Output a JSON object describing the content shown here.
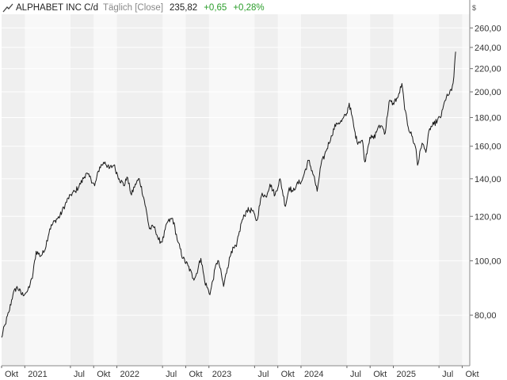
{
  "header": {
    "title": "ALPHABET INC C/d",
    "interval": "Täglich [Close]",
    "price": "235,82",
    "change_abs": "+0,65",
    "change_pct": "+0,28%"
  },
  "currency": "$",
  "colors": {
    "line": "#1a1a1a",
    "positive": "#2a9d2a",
    "band": "#efefef",
    "bg": "#f8f8f8",
    "grid": "#ffffff"
  },
  "chart_data": {
    "type": "line",
    "y_scale": "log",
    "ylim": [
      65,
      275
    ],
    "xlim": [
      "2020-10-01",
      "2025-10-31"
    ],
    "y_ticks": [
      {
        "value": 80,
        "label": "80,00"
      },
      {
        "value": 100,
        "label": "100,00"
      },
      {
        "value": 120,
        "label": "120,00"
      },
      {
        "value": 140,
        "label": "140,00"
      },
      {
        "value": 160,
        "label": "160,00"
      },
      {
        "value": 180,
        "label": "180,00"
      },
      {
        "value": 200,
        "label": "200,00"
      },
      {
        "value": 220,
        "label": "220,00"
      },
      {
        "value": 240,
        "label": "240,00"
      },
      {
        "value": 260,
        "label": "260,00"
      }
    ],
    "x_ticks": [
      {
        "date": "2020-10-01",
        "label": "Okt"
      },
      {
        "date": "2021-01-01",
        "label": "2021"
      },
      {
        "date": "2021-07-01",
        "label": "Jul"
      },
      {
        "date": "2021-10-01",
        "label": "Okt"
      },
      {
        "date": "2022-01-01",
        "label": "2022"
      },
      {
        "date": "2022-07-01",
        "label": "Jul"
      },
      {
        "date": "2022-10-01",
        "label": "Okt"
      },
      {
        "date": "2023-01-01",
        "label": "2023"
      },
      {
        "date": "2023-07-01",
        "label": "Jul"
      },
      {
        "date": "2023-10-01",
        "label": "Okt"
      },
      {
        "date": "2024-01-01",
        "label": "2024"
      },
      {
        "date": "2024-07-01",
        "label": "Jul"
      },
      {
        "date": "2024-10-01",
        "label": "Okt"
      },
      {
        "date": "2025-01-01",
        "label": "2025"
      },
      {
        "date": "2025-07-01",
        "label": "Jul"
      },
      {
        "date": "2025-10-01",
        "label": "Okt"
      }
    ],
    "series": [
      {
        "points": [
          [
            "2020-10-01",
            73
          ],
          [
            "2020-10-15",
            77
          ],
          [
            "2020-10-30",
            81
          ],
          [
            "2020-11-15",
            87
          ],
          [
            "2020-12-01",
            90
          ],
          [
            "2020-12-20",
            87
          ],
          [
            "2021-01-10",
            88
          ],
          [
            "2021-01-31",
            93
          ],
          [
            "2021-02-15",
            104
          ],
          [
            "2021-03-05",
            102
          ],
          [
            "2021-03-20",
            104
          ],
          [
            "2021-04-10",
            114
          ],
          [
            "2021-05-01",
            118
          ],
          [
            "2021-05-20",
            120
          ],
          [
            "2021-06-10",
            126
          ],
          [
            "2021-06-30",
            131
          ],
          [
            "2021-07-20",
            133
          ],
          [
            "2021-08-10",
            137
          ],
          [
            "2021-08-31",
            143
          ],
          [
            "2021-09-20",
            140
          ],
          [
            "2021-10-05",
            136
          ],
          [
            "2021-10-25",
            147
          ],
          [
            "2021-11-15",
            150
          ],
          [
            "2021-12-01",
            146
          ],
          [
            "2021-12-20",
            148
          ],
          [
            "2022-01-10",
            140
          ],
          [
            "2022-01-31",
            136
          ],
          [
            "2022-02-10",
            141
          ],
          [
            "2022-02-28",
            131
          ],
          [
            "2022-03-15",
            137
          ],
          [
            "2022-03-31",
            140
          ],
          [
            "2022-04-20",
            128
          ],
          [
            "2022-05-10",
            114
          ],
          [
            "2022-05-31",
            115
          ],
          [
            "2022-06-15",
            109
          ],
          [
            "2022-06-30",
            108
          ],
          [
            "2022-07-20",
            117
          ],
          [
            "2022-08-10",
            119
          ],
          [
            "2022-08-31",
            108
          ],
          [
            "2022-09-20",
            101
          ],
          [
            "2022-10-10",
            98
          ],
          [
            "2022-10-31",
            93
          ],
          [
            "2022-11-10",
            94
          ],
          [
            "2022-11-30",
            101
          ],
          [
            "2022-12-15",
            92
          ],
          [
            "2023-01-05",
            87
          ],
          [
            "2023-01-31",
            99
          ],
          [
            "2023-02-08",
            100
          ],
          [
            "2023-02-28",
            90
          ],
          [
            "2023-03-15",
            97
          ],
          [
            "2023-03-31",
            104
          ],
          [
            "2023-04-20",
            106
          ],
          [
            "2023-05-10",
            117
          ],
          [
            "2023-05-31",
            123
          ],
          [
            "2023-06-20",
            123
          ],
          [
            "2023-07-10",
            118
          ],
          [
            "2023-07-31",
            132
          ],
          [
            "2023-08-15",
            130
          ],
          [
            "2023-08-31",
            137
          ],
          [
            "2023-09-20",
            131
          ],
          [
            "2023-10-10",
            140
          ],
          [
            "2023-10-31",
            125
          ],
          [
            "2023-11-15",
            135
          ],
          [
            "2023-11-30",
            133
          ],
          [
            "2023-12-15",
            137
          ],
          [
            "2024-01-05",
            139
          ],
          [
            "2024-01-31",
            151
          ],
          [
            "2024-02-20",
            142
          ],
          [
            "2024-03-05",
            133
          ],
          [
            "2024-03-20",
            148
          ],
          [
            "2024-04-10",
            157
          ],
          [
            "2024-04-30",
            167
          ],
          [
            "2024-05-20",
            176
          ],
          [
            "2024-06-10",
            177
          ],
          [
            "2024-06-30",
            183
          ],
          [
            "2024-07-10",
            191
          ],
          [
            "2024-07-31",
            171
          ],
          [
            "2024-08-10",
            163
          ],
          [
            "2024-08-31",
            164
          ],
          [
            "2024-09-10",
            150
          ],
          [
            "2024-09-30",
            166
          ],
          [
            "2024-10-15",
            165
          ],
          [
            "2024-10-31",
            172
          ],
          [
            "2024-11-15",
            174
          ],
          [
            "2024-11-30",
            169
          ],
          [
            "2024-12-15",
            192
          ],
          [
            "2024-12-31",
            191
          ],
          [
            "2025-01-20",
            196
          ],
          [
            "2025-02-04",
            207
          ],
          [
            "2025-02-15",
            186
          ],
          [
            "2025-03-01",
            173
          ],
          [
            "2025-03-15",
            167
          ],
          [
            "2025-04-01",
            158
          ],
          [
            "2025-04-07",
            148
          ],
          [
            "2025-04-25",
            162
          ],
          [
            "2025-05-10",
            156
          ],
          [
            "2025-05-25",
            172
          ],
          [
            "2025-06-10",
            175
          ],
          [
            "2025-06-25",
            178
          ],
          [
            "2025-07-10",
            181
          ],
          [
            "2025-07-25",
            193
          ],
          [
            "2025-08-05",
            197
          ],
          [
            "2025-08-20",
            201
          ],
          [
            "2025-08-29",
            213
          ],
          [
            "2025-09-03",
            231
          ],
          [
            "2025-09-05",
            235.82
          ]
        ]
      }
    ]
  }
}
